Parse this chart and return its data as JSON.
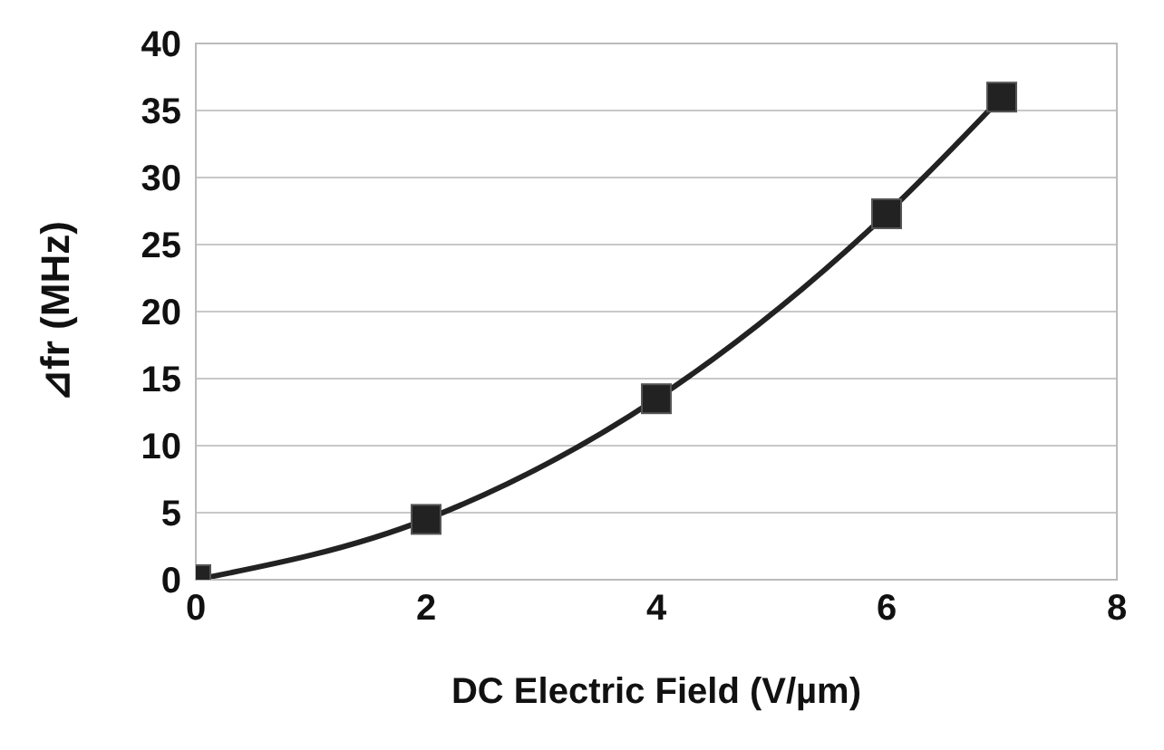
{
  "chart_data": {
    "type": "line",
    "xlabel": "DC Electric Field (V/µm)",
    "ylabel": "⊿fr  (MHz)",
    "x": [
      0,
      2,
      4,
      6,
      7
    ],
    "series": [
      {
        "color": "#222222",
        "values": [
          0,
          4.5,
          13.5,
          27.3,
          36
        ]
      }
    ],
    "xlim": [
      0,
      8
    ],
    "xticks": [
      0,
      2,
      4,
      6,
      8
    ],
    "ylim": [
      0,
      40
    ],
    "yticks": [
      0,
      5,
      10,
      15,
      20,
      25,
      30,
      35,
      40
    ],
    "grid": "y",
    "marker": "square",
    "line_style": "solid",
    "legend": false
  }
}
